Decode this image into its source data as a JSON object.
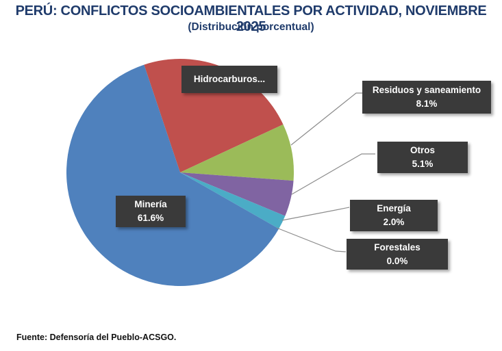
{
  "header": {
    "title": "PERÚ: CONFLICTOS SOCIOAMBIENTALES POR ACTIVIDAD, NOVIEMBRE 2025",
    "subtitle": "(Distribución porcentual)"
  },
  "labels": {
    "hidrocarburos": {
      "name": "Hidrocarburos...",
      "value": ""
    },
    "residuos": {
      "name": "Residuos y saneamiento",
      "value": "8.1%"
    },
    "otros": {
      "name": "Otros",
      "value": "5.1%"
    },
    "energia": {
      "name": "Energía",
      "value": "2.0%"
    },
    "forestales": {
      "name": "Forestales",
      "value": "0.0%"
    },
    "mineria": {
      "name": "Minería",
      "value": "61.6%"
    }
  },
  "footer": {
    "source": "Fuente: Defensoría del Pueblo-ACSGO."
  },
  "chart_data": {
    "type": "pie",
    "title": "PERÚ: CONFLICTOS SOCIOAMBIENTALES POR ACTIVIDAD, NOVIEMBRE 2025",
    "subtitle": "(Distribución porcentual)",
    "categories": [
      "Hidrocarburos",
      "Residuos y saneamiento",
      "Otros",
      "Energía",
      "Forestales",
      "Minería"
    ],
    "values": [
      23.2,
      8.1,
      5.1,
      2.0,
      0.0,
      61.6
    ],
    "colors": [
      "#c0504d",
      "#9bbb59",
      "#8064a2",
      "#4bacc6",
      "#f79646",
      "#4f81bd"
    ],
    "unit": "%",
    "legend": "none (data callout labels)",
    "source": "Fuente: Defensoría del Pueblo-ACSGO."
  }
}
